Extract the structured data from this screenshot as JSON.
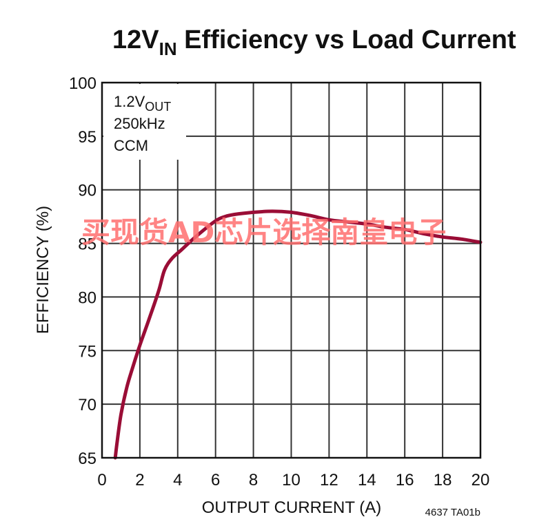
{
  "chart_data": {
    "type": "line",
    "title_main": "12V",
    "title_sub": "IN",
    "title_rest": " Efficiency vs Load Current",
    "xlabel": "OUTPUT CURRENT (A)",
    "ylabel": "EFFICIENCY (%)",
    "xlim": [
      0,
      20
    ],
    "ylim": [
      65,
      100
    ],
    "xticks": [
      0,
      2,
      4,
      6,
      8,
      10,
      12,
      14,
      16,
      18,
      20
    ],
    "yticks": [
      65,
      70,
      75,
      80,
      85,
      90,
      95,
      100
    ],
    "grid": true,
    "annotations": {
      "line1_main": "1.2V",
      "line1_sub": "OUT",
      "line2": "250kHz",
      "line3": "CCM"
    },
    "figure_code": "4637 TA01b",
    "series": [
      {
        "color": "#9a0d36",
        "x": [
          0.7,
          0.8,
          1.0,
          1.3,
          1.6,
          2.0,
          2.5,
          3.0,
          3.3,
          3.7,
          4.2,
          5.0,
          6.0,
          6.5,
          7.0,
          8.0,
          9.0,
          10.0,
          11.0,
          12.0,
          13.0,
          14.0,
          15.0,
          16.0,
          17.0,
          18.0,
          19.0,
          20.0
        ],
        "y": [
          65.0,
          66.5,
          69.0,
          71.5,
          73.3,
          75.5,
          78.0,
          80.6,
          82.5,
          83.6,
          84.4,
          85.7,
          87.1,
          87.5,
          87.7,
          87.9,
          88.0,
          87.9,
          87.6,
          87.2,
          87.0,
          86.8,
          86.5,
          86.3,
          85.9,
          85.6,
          85.4,
          85.1
        ]
      }
    ]
  },
  "watermark": "买现货AD芯片选择南皇电子"
}
